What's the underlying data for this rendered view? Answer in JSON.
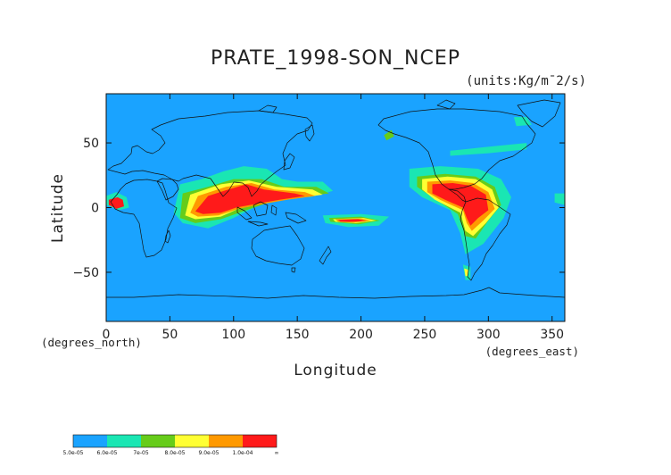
{
  "chart_data": {
    "type": "heatmap",
    "title": "PRATE_1998-SON_NCEP",
    "units": "(units:Kg/m¯2/s)",
    "xlabel": "Longitude",
    "ylabel": "Latitude",
    "x_unit_label": "(degrees_east)",
    "y_unit_label": "(degrees_north)",
    "xlim": [
      0,
      360
    ],
    "ylim": [
      -88,
      88
    ],
    "x_ticks": [
      0,
      50,
      100,
      150,
      200,
      250,
      300,
      350
    ],
    "y_ticks": [
      50,
      0,
      -50
    ],
    "x_tick_labels": [
      "0",
      "50",
      "100",
      "150",
      "200",
      "250",
      "300",
      "350"
    ],
    "y_tick_labels": [
      "50",
      "0",
      "−50"
    ],
    "colorbar": {
      "labels": [
        "5.0e-05",
        "6.0e-05",
        "7e-05",
        "8.0e-05",
        "9.0e-05",
        "1.0e-04",
        "∞"
      ],
      "colors": [
        "#1aa3ff",
        "#1ae6b3",
        "#66cc1a",
        "#ffff33",
        "#ff9900",
        "#ff1a1a"
      ]
    },
    "background_color": "#1aa3ff",
    "regions": [
      {
        "level": 1,
        "points": [
          [
            58,
            18
          ],
          [
            75,
            22
          ],
          [
            92,
            28
          ],
          [
            108,
            32
          ],
          [
            126,
            30
          ],
          [
            138,
            22
          ],
          [
            150,
            20
          ],
          [
            170,
            20
          ],
          [
            178,
            13
          ],
          [
            160,
            8
          ],
          [
            140,
            10
          ],
          [
            120,
            2
          ],
          [
            100,
            -8
          ],
          [
            80,
            -16
          ],
          [
            60,
            -12
          ],
          [
            53,
            -4
          ]
        ]
      },
      {
        "level": 1,
        "points": [
          [
            170,
            -6
          ],
          [
            200,
            -5
          ],
          [
            222,
            -7
          ],
          [
            214,
            -14
          ],
          [
            190,
            -15
          ],
          [
            172,
            -12
          ]
        ]
      },
      {
        "level": 1,
        "points": [
          [
            238,
            30
          ],
          [
            262,
            32
          ],
          [
            292,
            30
          ],
          [
            310,
            22
          ],
          [
            318,
            8
          ],
          [
            312,
            -8
          ],
          [
            296,
            -28
          ],
          [
            282,
            -36
          ],
          [
            278,
            -20
          ],
          [
            270,
            -2
          ],
          [
            248,
            8
          ],
          [
            238,
            16
          ]
        ]
      },
      {
        "level": 1,
        "points": [
          [
            270,
            44
          ],
          [
            300,
            47
          ],
          [
            330,
            50
          ],
          [
            330,
            45
          ],
          [
            300,
            42
          ],
          [
            270,
            40
          ]
        ]
      },
      {
        "level": 1,
        "points": [
          [
            0,
            9
          ],
          [
            8,
            12
          ],
          [
            16,
            8
          ],
          [
            18,
            0
          ],
          [
            10,
            -2
          ],
          [
            0,
            2
          ]
        ]
      },
      {
        "level": 1,
        "points": [
          [
            352,
            11
          ],
          [
            360,
            11
          ],
          [
            360,
            2
          ],
          [
            352,
            4
          ]
        ]
      },
      {
        "level": 2,
        "points": [
          [
            60,
            11
          ],
          [
            80,
            16
          ],
          [
            100,
            22
          ],
          [
            122,
            22
          ],
          [
            140,
            16
          ],
          [
            165,
            16
          ],
          [
            175,
            11
          ],
          [
            150,
            8
          ],
          [
            128,
            4
          ],
          [
            110,
            -2
          ],
          [
            90,
            -9
          ],
          [
            70,
            -12
          ],
          [
            58,
            -8
          ]
        ]
      },
      {
        "level": 2,
        "points": [
          [
            175,
            -8
          ],
          [
            200,
            -7
          ],
          [
            215,
            -10
          ],
          [
            198,
            -13
          ],
          [
            176,
            -11
          ]
        ]
      },
      {
        "level": 2,
        "points": [
          [
            244,
            24
          ],
          [
            266,
            26
          ],
          [
            290,
            24
          ],
          [
            305,
            16
          ],
          [
            310,
            2
          ],
          [
            300,
            -10
          ],
          [
            290,
            -24
          ],
          [
            282,
            -22
          ],
          [
            276,
            -5
          ],
          [
            256,
            8
          ],
          [
            244,
            16
          ]
        ]
      },
      {
        "level": 3,
        "points": [
          [
            66,
            10
          ],
          [
            90,
            18
          ],
          [
            112,
            21
          ],
          [
            134,
            16
          ],
          [
            162,
            14
          ],
          [
            170,
            10
          ],
          [
            148,
            7
          ],
          [
            126,
            4
          ],
          [
            106,
            0
          ],
          [
            90,
            -7
          ],
          [
            70,
            -9
          ],
          [
            62,
            -6
          ]
        ]
      },
      {
        "level": 3,
        "points": [
          [
            178,
            -9
          ],
          [
            202,
            -8
          ],
          [
            212,
            -10
          ],
          [
            196,
            -12
          ],
          [
            180,
            -11
          ]
        ]
      },
      {
        "level": 3,
        "points": [
          [
            248,
            22
          ],
          [
            268,
            24
          ],
          [
            290,
            22
          ],
          [
            303,
            14
          ],
          [
            308,
            0
          ],
          [
            298,
            -12
          ],
          [
            288,
            -22
          ],
          [
            282,
            -18
          ],
          [
            278,
            -4
          ],
          [
            258,
            6
          ],
          [
            248,
            14
          ]
        ]
      },
      {
        "level": 4,
        "points": [
          [
            72,
            9
          ],
          [
            94,
            16
          ],
          [
            114,
            19
          ],
          [
            132,
            14
          ],
          [
            156,
            12
          ],
          [
            164,
            9
          ],
          [
            142,
            6
          ],
          [
            124,
            3
          ],
          [
            104,
            -1
          ],
          [
            88,
            -6
          ],
          [
            72,
            -7
          ],
          [
            66,
            -4
          ]
        ]
      },
      {
        "level": 4,
        "points": [
          [
            180,
            -9
          ],
          [
            200,
            -8.5
          ],
          [
            208,
            -10
          ],
          [
            194,
            -11.5
          ],
          [
            182,
            -11
          ]
        ]
      },
      {
        "level": 4,
        "points": [
          [
            252,
            20
          ],
          [
            270,
            21
          ],
          [
            288,
            19
          ],
          [
            300,
            12
          ],
          [
            305,
            -1
          ],
          [
            296,
            -10
          ],
          [
            287,
            -18
          ],
          [
            283,
            -12
          ],
          [
            280,
            -2
          ],
          [
            262,
            6
          ],
          [
            252,
            12
          ]
        ]
      },
      {
        "level": 5,
        "points": [
          [
            80,
            9
          ],
          [
            96,
            14
          ],
          [
            110,
            18
          ],
          [
            124,
            14
          ],
          [
            148,
            11
          ],
          [
            156,
            9
          ],
          [
            136,
            6
          ],
          [
            118,
            3
          ],
          [
            102,
            0
          ],
          [
            90,
            -4
          ],
          [
            76,
            -5
          ],
          [
            70,
            -3
          ]
        ]
      },
      {
        "level": 5,
        "points": [
          [
            182,
            -9.5
          ],
          [
            198,
            -9
          ],
          [
            204,
            -10.5
          ],
          [
            190,
            -11
          ],
          [
            184,
            -11
          ]
        ]
      },
      {
        "level": 5,
        "points": [
          [
            256,
            18
          ],
          [
            272,
            19
          ],
          [
            286,
            17
          ],
          [
            298,
            10
          ],
          [
            300,
            -2
          ],
          [
            292,
            -8
          ],
          [
            286,
            -14
          ],
          [
            283,
            -8
          ],
          [
            280,
            0
          ],
          [
            266,
            6
          ],
          [
            256,
            11
          ]
        ]
      },
      {
        "level": 1,
        "points": [
          [
            320,
            70
          ],
          [
            330,
            70
          ],
          [
            334,
            64
          ],
          [
            322,
            63
          ]
        ]
      },
      {
        "level": 1,
        "points": [
          [
            280,
            -44
          ],
          [
            286,
            -46
          ],
          [
            286,
            -56
          ],
          [
            282,
            -56
          ]
        ]
      },
      {
        "level": 3,
        "points": [
          [
            281,
            -47
          ],
          [
            284,
            -48
          ],
          [
            284,
            -53
          ],
          [
            282,
            -53
          ]
        ]
      },
      {
        "level": 2,
        "points": [
          [
            218,
            56
          ],
          [
            224,
            60
          ],
          [
            226,
            55
          ],
          [
            220,
            52
          ]
        ]
      },
      {
        "level": 5,
        "points": [
          [
            2,
            6
          ],
          [
            9,
            8
          ],
          [
            13,
            6
          ],
          [
            14,
            1
          ],
          [
            8,
            -1
          ],
          [
            2,
            2
          ]
        ]
      }
    ]
  }
}
